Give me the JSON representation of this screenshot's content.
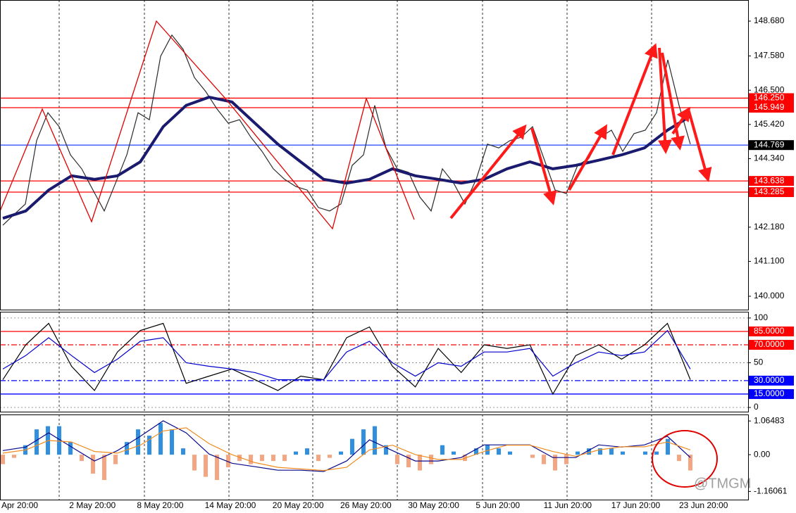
{
  "chart_data": [
    {
      "type": "line",
      "panel": "price",
      "ylim": [
        139.578,
        149.346
      ],
      "yticks": [
        {
          "value": 148.68,
          "label": "148.680"
        },
        {
          "value": 147.58,
          "label": "147.580"
        },
        {
          "value": 146.5,
          "label": "146.500"
        },
        {
          "value": 145.42,
          "label": "145.420"
        },
        {
          "value": 144.34,
          "label": "144.340"
        },
        {
          "value": 142.18,
          "label": "142.180"
        },
        {
          "value": 141.1,
          "label": "141.100"
        },
        {
          "value": 140.0,
          "label": "140.000"
        }
      ],
      "series": [
        {
          "color": "#2b2b2b",
          "values": [
            142.24,
            142.58,
            142.91,
            144.91,
            145.79,
            145.35,
            144.46,
            144.02,
            143.35,
            142.69,
            143.57,
            144.46,
            145.79,
            145.57,
            147.57,
            148.24,
            147.79,
            146.9,
            146.46,
            145.91,
            145.46,
            145.57,
            145.02,
            144.57,
            144.02,
            143.69,
            143.46,
            143.35,
            142.8,
            142.69,
            142.91,
            144.13,
            144.46,
            146.02,
            144.68,
            144.02,
            143.91,
            143.13,
            142.69,
            144.02,
            143.57,
            142.91,
            143.69,
            144.8,
            144.68,
            144.91,
            145.02,
            145.35,
            144.35,
            143.35,
            143.24,
            144.13,
            144.35,
            145.02,
            145.24,
            144.57,
            145.13,
            145.24,
            145.79,
            147.46,
            146.02,
            144.8
          ]
        },
        {
          "color": "#1a1a6e",
          "values": [
            142.46,
            142.69,
            143.35,
            143.8,
            143.69,
            143.8,
            144.24,
            145.35,
            146.02,
            146.28,
            146.13,
            145.46,
            144.8,
            144.24,
            143.69,
            143.57,
            143.69,
            144.02,
            143.8,
            143.69,
            143.57,
            143.69,
            144.02,
            144.24,
            144.02,
            144.13,
            144.29,
            144.46,
            144.68,
            145.24,
            145.68
          ]
        }
      ],
      "levels": [
        {
          "value": 146.25,
          "label": "146.250",
          "color": "#ff0000",
          "label_bg": "#ff0000"
        },
        {
          "value": 145.949,
          "label": "145.949",
          "color": "#ff0000",
          "label_bg": "#ff0000"
        },
        {
          "value": 144.769,
          "label": "144.769",
          "color": "#3355ff",
          "label_bg": "#000000"
        },
        {
          "value": 143.638,
          "label": "143.638",
          "color": "#ff0000",
          "label_bg": "#ff0000"
        },
        {
          "value": 143.285,
          "label": "143.285",
          "color": "#ff0000",
          "label_bg": "#ff0000"
        }
      ]
    },
    {
      "type": "line",
      "panel": "stochastic",
      "ylim": [
        -4.7,
        107
      ],
      "yticks": [
        100,
        50,
        0
      ],
      "grid": true,
      "series": [
        {
          "color": "#000000",
          "values": [
            31,
            70,
            94,
            46,
            19,
            62,
            86,
            94,
            27,
            35,
            43,
            31,
            19,
            35,
            31,
            78,
            90,
            46,
            23,
            66,
            39,
            70,
            66,
            70,
            15,
            58,
            70,
            54,
            70,
            94,
            31
          ]
        },
        {
          "color": "#0000cc",
          "values": [
            43,
            58,
            78,
            58,
            39,
            54,
            74,
            78,
            50,
            46,
            43,
            39,
            31,
            31,
            31,
            62,
            74,
            50,
            35,
            50,
            46,
            62,
            62,
            66,
            35,
            50,
            62,
            58,
            62,
            86,
            43
          ]
        }
      ],
      "levels": [
        {
          "value": 85,
          "label": "85.0000",
          "color": "#ff0000",
          "label_bg": "#ff0000",
          "style": "solid"
        },
        {
          "value": 70,
          "label": "70.0000",
          "color": "#ff0000",
          "label_bg": "#ff0000",
          "style": "dashdot"
        },
        {
          "value": 30,
          "label": "30.0000",
          "color": "#0000ff",
          "label_bg": "#0000ff",
          "style": "dashdot"
        },
        {
          "value": 15,
          "label": "15.0000",
          "color": "#0000ff",
          "label_bg": "#0000ff",
          "style": "solid"
        }
      ]
    },
    {
      "type": "macd",
      "panel": "macd",
      "ylim": [
        -1.42,
        1.27
      ],
      "yticks": [
        1.06483,
        {
          "value": 0,
          "label": "0.00"
        },
        -1.16061
      ],
      "colors": {
        "positive": "#2f8fe0",
        "negative": "#f4a582"
      },
      "histogram": [
        -0.3,
        -0.1,
        0.3,
        0.8,
        0.9,
        0.9,
        0.4,
        -0.2,
        -0.6,
        -0.8,
        -0.3,
        0.4,
        0.8,
        0.6,
        1.0,
        0.8,
        0.2,
        -0.5,
        -0.7,
        -0.8,
        -0.4,
        -0.2,
        -0.3,
        -0.2,
        -0.2,
        -0.2,
        0.1,
        0.2,
        -0.2,
        -0.1,
        0.1,
        0.5,
        0.8,
        0.9,
        0.3,
        -0.3,
        -0.4,
        -0.5,
        -0.3,
        0.3,
        0.1,
        -0.2,
        0.2,
        0.3,
        0.2,
        0.1,
        0.0,
        -0.1,
        -0.3,
        -0.5,
        -0.3,
        0.1,
        0.2,
        0.2,
        0.2,
        0.1,
        0.0,
        0.1,
        0.1,
        0.5,
        -0.2,
        -0.5
      ],
      "series": [
        {
          "color": "#0a0a8c",
          "values": [
            0.13,
            0.24,
            0.69,
            0.24,
            -0.2,
            0.13,
            0.58,
            1.07,
            0.69,
            0.02,
            -0.27,
            -0.38,
            -0.49,
            -0.49,
            -0.53,
            -0.2,
            0.47,
            0.13,
            -0.2,
            -0.2,
            -0.09,
            0.31,
            0.31,
            0.31,
            -0.09,
            -0.09,
            0.31,
            0.24,
            0.31,
            0.58,
            -0.09
          ]
        },
        {
          "color": "#f08c1e",
          "values": [
            0.05,
            0.15,
            0.45,
            0.4,
            0.1,
            0.05,
            0.3,
            0.75,
            0.85,
            0.35,
            0.0,
            -0.25,
            -0.4,
            -0.45,
            -0.5,
            -0.4,
            0.15,
            0.3,
            0.0,
            -0.15,
            -0.15,
            0.1,
            0.3,
            0.3,
            0.1,
            -0.05,
            0.15,
            0.25,
            0.25,
            0.4,
            0.15
          ]
        }
      ]
    }
  ],
  "time_labels": [
    "Apr 20:00",
    "2 May 20:00",
    "8 May 20:00",
    "14 May 20:00",
    "20 May 20:00",
    "26 May 20:00",
    "30 May 20:00",
    "5 Jun 20:00",
    "11 Jun 20:00",
    "17 Jun 20:00",
    "23 Jun 20:00"
  ],
  "watermark": "@TMGM"
}
